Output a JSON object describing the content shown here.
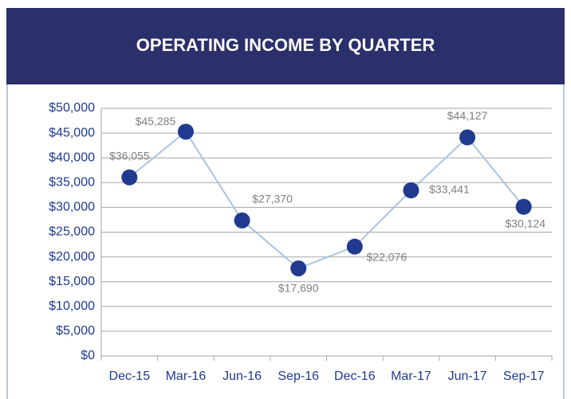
{
  "chart_data": {
    "type": "line",
    "title": "OPERATING INCOME BY QUARTER",
    "categories": [
      "Dec-15",
      "Mar-16",
      "Jun-16",
      "Sep-16",
      "Dec-16",
      "Mar-17",
      "Jun-17",
      "Sep-17"
    ],
    "series": [
      {
        "name": "Operating Income",
        "color": "#1f3a8f",
        "values": [
          36055,
          45285,
          27370,
          17690,
          22076,
          33441,
          44127,
          30124
        ],
        "value_labels": [
          "$36,055",
          "$45,285",
          "$27,370",
          "$17,690",
          "$22,076",
          "$33,441",
          "$44,127",
          "$30,124"
        ]
      }
    ],
    "line_color": "#a9c4e0",
    "ylim": [
      0,
      50000
    ],
    "yticks": [
      {
        "value": 0,
        "label": "$0"
      },
      {
        "value": 5000,
        "label": "$5,000"
      },
      {
        "value": 10000,
        "label": "$10,000"
      },
      {
        "value": 15000,
        "label": "$15,000"
      },
      {
        "value": 20000,
        "label": "$20,000"
      },
      {
        "value": 25000,
        "label": "$25,000"
      },
      {
        "value": 30000,
        "label": "$30,000"
      },
      {
        "value": 35000,
        "label": "$35,000"
      },
      {
        "value": 40000,
        "label": "$40,000"
      },
      {
        "value": 45000,
        "label": "$45,000"
      },
      {
        "value": 50000,
        "label": "$50,000"
      }
    ],
    "grid": true
  }
}
